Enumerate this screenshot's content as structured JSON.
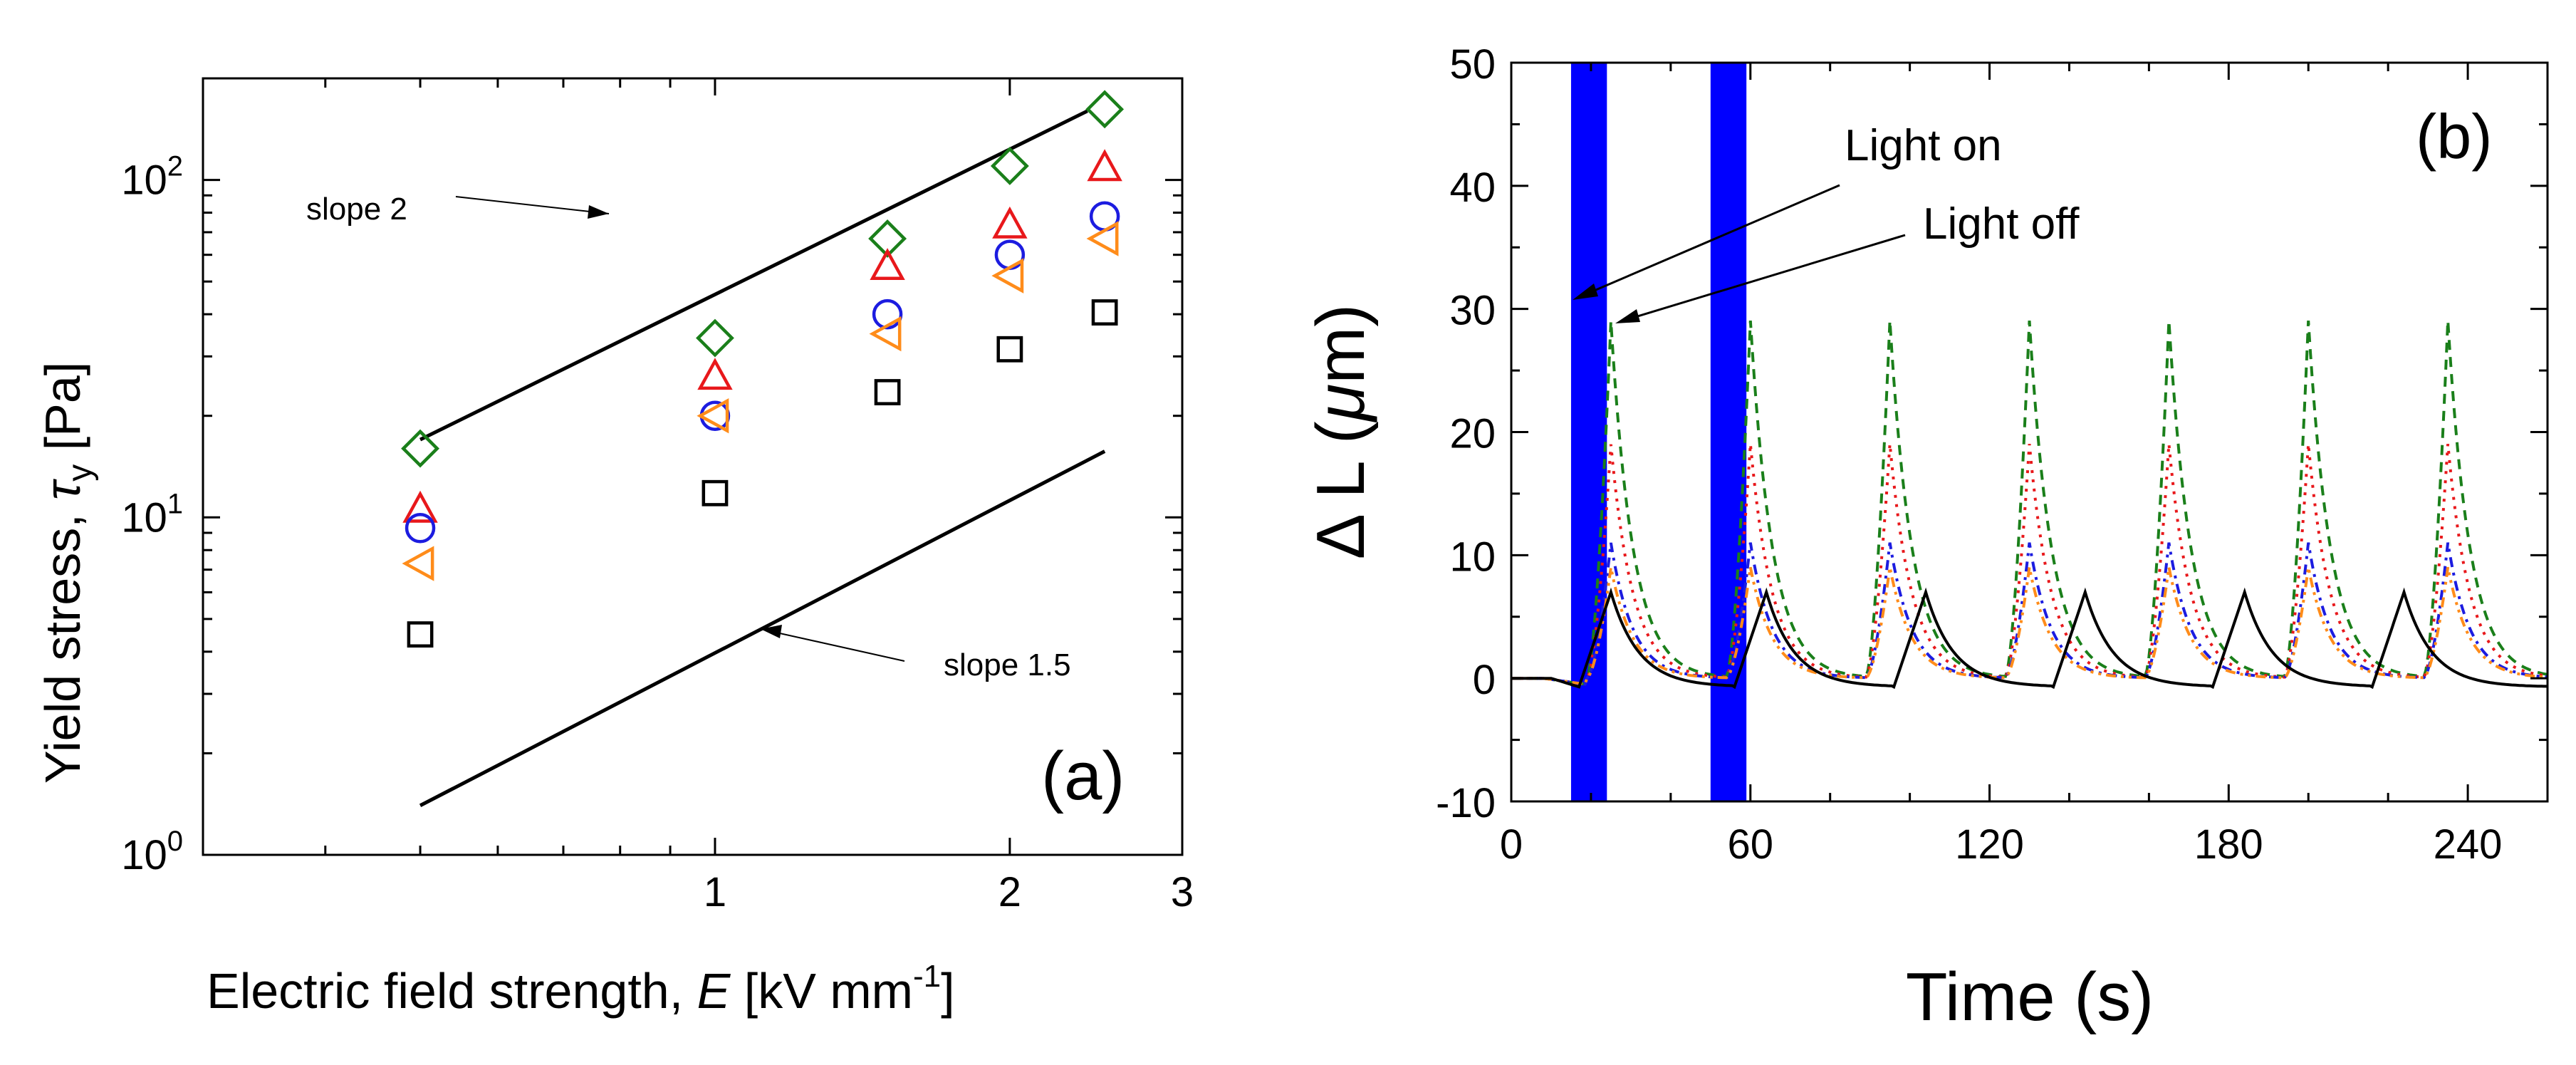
{
  "chart_data": [
    {
      "panel": "(a)",
      "type": "scatter",
      "xscale": "log",
      "yscale": "log",
      "xlabel_prefix": "Electric field strength, ",
      "xlabel_var": "E",
      "xlabel_unit": " [kV mm",
      "xlabel_exp": "-1",
      "xlabel_close": "]",
      "ylabel_prefix": "Yield stress, ",
      "ylabel_var": "τ",
      "ylabel_sub": "y",
      "ylabel_unit": " [Pa]",
      "xlim": [
        0.3,
        3
      ],
      "ylim": [
        1,
        200
      ],
      "xticks": [
        {
          "value": 1,
          "label": "1"
        },
        {
          "value": 2,
          "label": "2"
        },
        {
          "value": 3,
          "label": "3"
        }
      ],
      "yticks": [
        {
          "value": 1,
          "base": "10",
          "exp": "0"
        },
        {
          "value": 10,
          "base": "10",
          "exp": "1"
        },
        {
          "value": 100,
          "base": "10",
          "exp": "2"
        }
      ],
      "x": [
        0.5,
        1.0,
        1.5,
        2.0,
        2.5
      ],
      "series": [
        {
          "name": "diamond",
          "marker": "diamond",
          "color": "#1a7f1a",
          "values": [
            16,
            34,
            67,
            110,
            162
          ]
        },
        {
          "name": "triangle-up",
          "marker": "triangle-up",
          "color": "#e8181b",
          "values": [
            10.5,
            26,
            55,
            73,
            108
          ]
        },
        {
          "name": "circle",
          "marker": "circle",
          "color": "#1c1ce0",
          "values": [
            9.3,
            20,
            40,
            60,
            78
          ]
        },
        {
          "name": "triangle-left",
          "marker": "triangle-left",
          "color": "#ff8c1a",
          "values": [
            7.3,
            20,
            35,
            52,
            67
          ]
        },
        {
          "name": "square",
          "marker": "square",
          "color": "#000000",
          "values": [
            4.5,
            11.8,
            23.5,
            31.5,
            40.5
          ]
        }
      ],
      "reference_lines": [
        {
          "name": "slope 2",
          "x": [
            0.5,
            2.4
          ],
          "y": [
            17,
            160
          ]
        },
        {
          "name": "slope 1.5",
          "x": [
            0.5,
            2.5
          ],
          "y": [
            1.4,
            15.7
          ]
        }
      ],
      "annotations": [
        {
          "text": "slope 2",
          "arrow_target_line": "slope 2"
        },
        {
          "text": "slope 1.5",
          "arrow_target_line": "slope 1.5"
        }
      ],
      "panel_label": "(a)"
    },
    {
      "panel": "(b)",
      "type": "line",
      "xlabel": "Time (s)",
      "ylabel_delta": "Δ",
      "ylabel_mid": " L (",
      "ylabel_mu": "μ",
      "ylabel_end": "m)",
      "xlim": [
        0,
        260
      ],
      "ylim": [
        -10,
        50
      ],
      "xticks": [
        "0",
        "60",
        "120",
        "180",
        "240"
      ],
      "yticks": [
        "-10",
        "0",
        "10",
        "20",
        "30",
        "40",
        "50"
      ],
      "period_s": 35,
      "light_on_bands": [
        [
          15,
          24
        ],
        [
          50,
          59
        ]
      ],
      "band_color": "#0000ff",
      "series": [
        {
          "name": "dashed-green",
          "color": "#1a7f1a",
          "dash": "14,10",
          "peak": 29,
          "peak_times": [
            25,
            60,
            95,
            130,
            165,
            200,
            235
          ]
        },
        {
          "name": "dotted-red",
          "color": "#e8181b",
          "dash": "4,9",
          "peak": 19,
          "peak_times": [
            25,
            60,
            95,
            130,
            165,
            200,
            235
          ]
        },
        {
          "name": "dashdot-blue",
          "color": "#1c1ce0",
          "dash": "14,8,4,8",
          "peak": 11,
          "peak_times": [
            25,
            60,
            95,
            130,
            165,
            200,
            235
          ]
        },
        {
          "name": "dashdotdot-orange",
          "color": "#ff8c1a",
          "dash": "14,7,4,7,4,7",
          "peak": 9,
          "peak_times": [
            25,
            60,
            95,
            130,
            165,
            200,
            235
          ]
        },
        {
          "name": "solid-black",
          "color": "#000000",
          "dash": "",
          "peak": 7,
          "peak_times": [
            25,
            64,
            104,
            144,
            184,
            224
          ]
        }
      ],
      "annotations": [
        {
          "text": "Light on"
        },
        {
          "text": "Light off"
        }
      ],
      "panel_label": "(b)"
    }
  ]
}
